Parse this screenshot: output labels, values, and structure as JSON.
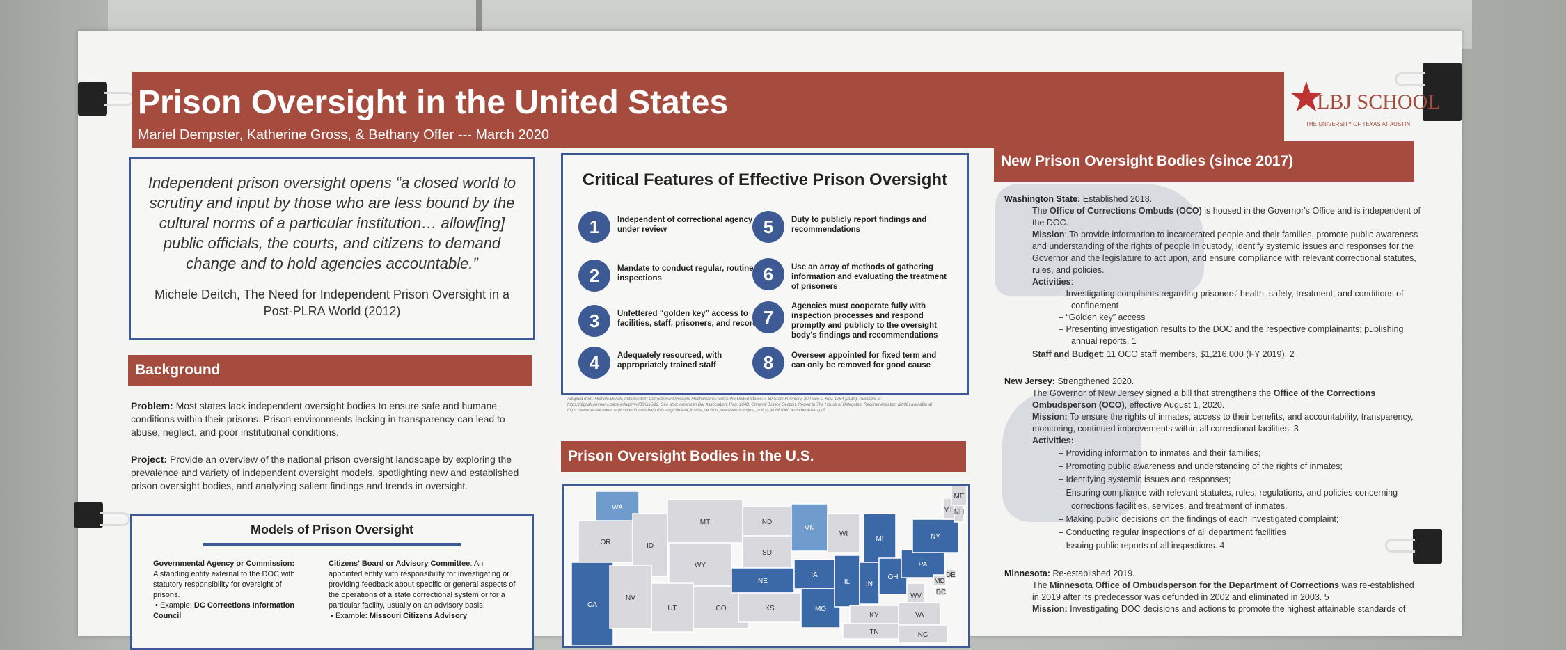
{
  "header": {
    "title": "Prison Oversight in the United States",
    "authors": "Mariel Dempster, Katherine Gross, & Bethany Offer --- March 2020",
    "logo_text": "LBJ SCHOOL",
    "logo_sub": "THE UNIVERSITY OF TEXAS AT AUSTIN"
  },
  "quote": {
    "text": "Independent prison oversight opens “a closed world to scrutiny and input by those who are less bound by the cultural norms of a particular institution… allow[ing] public officials, the courts, and citizens to demand change and to hold agencies accountable.”",
    "source": "Michele Deitch, The Need for Independent Prison Oversight in a Post-PLRA World (2012)"
  },
  "background": {
    "heading": "Background",
    "problem_label": "Problem:",
    "problem_text": "Most states lack independent oversight bodies to ensure safe and humane conditions within their prisons. Prison environments lacking in transparency can lead to abuse, neglect, and poor institutional conditions.",
    "project_label": "Project:",
    "project_text": "Provide an overview of the national prison oversight landscape by exploring the prevalence and variety of independent oversight models, spotlighting new and established prison oversight bodies, and analyzing salient findings and trends in oversight."
  },
  "models": {
    "title": "Models of Prison Oversight",
    "col1_head": "Governmental Agency or Commission:",
    "col1_text": "A standing entity external to the DOC with statutory responsibility for oversight of prisons.",
    "col1_example_label": "Example:",
    "col1_example": "DC Corrections Information Council",
    "col2_head": "Citizens' Board or Advisory Committee",
    "col2_text": ": An appointed entity with responsibility for investigating or providing feedback about specific or general aspects of the operations of a state correctional system or for a particular facility, usually on an advisory basis.",
    "col2_example_label": "Example:",
    "col2_example": "Missouri Citizens Advisory"
  },
  "features": {
    "title": "Critical Features of Effective Prison Oversight",
    "items": [
      {
        "num": "1",
        "text": "Independent of correctional agency under review"
      },
      {
        "num": "2",
        "text": "Mandate to conduct regular, routine inspections"
      },
      {
        "num": "3",
        "text": "Unfettered “golden key” access to facilities, staff, prisoners, and records"
      },
      {
        "num": "4",
        "text": "Adequately resourced, with appropriately trained staff"
      },
      {
        "num": "5",
        "text": "Duty to publicly report findings and recommendations"
      },
      {
        "num": "6",
        "text": "Use an array of methods of gathering information and evaluating the treatment of prisoners"
      },
      {
        "num": "7",
        "text": "Agencies must cooperate fully with inspection processes and respond promptly and publicly to the oversight body's findings and recommendations"
      },
      {
        "num": "8",
        "text": "Overseer appointed for fixed term and can only be removed for good cause"
      }
    ],
    "footnote": "Adapted from: Michele Deitch, Independent Correctional Oversight Mechanisms Across the United States: A 50-State Inventory, 30 Pace L. Rev. 1754 (2010). Available at https://digitalcommons.pace.edu/plr/vol30/iss5/12. See also: American Bar Association, Rep. 104B, Criminal Justice Section, Report to The House of Delegates: Recommendation (2008) available at https://www.americanbar.org/content/dam/aba/publishing/criminal_justice_section_newsletter/crimjust_policy_am08104b.authcheckdam.pdf"
  },
  "map": {
    "heading": "Prison Oversight Bodies in the U.S.",
    "colors": {
      "dark": "#3b69a8",
      "light": "#6f9ccd",
      "none": "#d9d9dd",
      "border": "#ffffff"
    },
    "labels": [
      "WA",
      "OR",
      "ID",
      "MT",
      "WY",
      "ND",
      "SD",
      "NE",
      "MN",
      "WI",
      "MI",
      "IA",
      "IL",
      "IN",
      "OH",
      "PA",
      "NY",
      "VT",
      "ME",
      "NV",
      "UT",
      "CO",
      "KS",
      "MO",
      "KY",
      "WV",
      "VA",
      "NC",
      "TN",
      "CA",
      "DE",
      "MD",
      "DC",
      "NH"
    ]
  },
  "new_bodies": {
    "heading": "New Prison Oversight Bodies (since 2017)",
    "wa": {
      "state": "Washington State:",
      "state_note": "Established 2018.",
      "intro_pre": "The ",
      "intro_bold": "Office of Corrections Ombuds (OCO)",
      "intro_post": " is housed in the Governor's Office and is independent of the DOC.",
      "mission_label": "Mission",
      "mission": ": To provide information to incarcerated people and their families, promote public awareness and understanding of the rights of people in custody, identify systemic issues and responses for the Governor and the legislature to act upon, and ensure compliance with relevant correctional statutes, rules, and policies.",
      "activities_label": "Activities",
      "activities": [
        "Investigating complaints regarding prisoners' health, safety, treatment, and conditions of confinement",
        "“Golden key” access",
        "Presenting investigation results to the DOC and the respective complainants; publishing annual reports. 1"
      ],
      "staff_label": "Staff and Budget",
      "staff": ": 11 OCO staff members, $1,216,000 (FY 2019). 2"
    },
    "nj": {
      "state": "New Jersey:",
      "state_note": "Strengthened 2020.",
      "intro_pre": "The Governor of New Jersey signed a bill that strengthens the ",
      "intro_bold": "Office of the Corrections Ombudsperson (OCO)",
      "intro_post": ", effective August 1, 2020.",
      "mission_label": "Mission:",
      "mission": " To ensure the rights of inmates, access to their benefits, and accountability, transparency, monitoring, continued improvements within all correctional facilities. 3",
      "activities_label": "Activities:",
      "activities": [
        "Providing information to inmates and their families;",
        "Promoting public awareness and understanding of the rights of inmates;",
        "Identifying systemic issues and responses;",
        "Ensuring compliance with relevant statutes, rules, regulations, and policies concerning corrections facilities, services, and treatment of inmates.",
        "Making public decisions on the findings of each investigated complaint;",
        "Conducting regular inspections of all department facilities",
        "Issuing public reports of all inspections. 4"
      ]
    },
    "mn": {
      "state": "Minnesota:",
      "state_note": "Re-established 2019.",
      "intro_pre": "The ",
      "intro_bold": "Minnesota Office of Ombudsperson for the Department of Corrections",
      "intro_post": " was re-established in 2019 after its predecessor was defunded in 2002 and eliminated in 2003. 5",
      "mission_label": "Mission:",
      "mission": " Investigating DOC decisions and actions to promote the highest attainable standards of"
    }
  }
}
